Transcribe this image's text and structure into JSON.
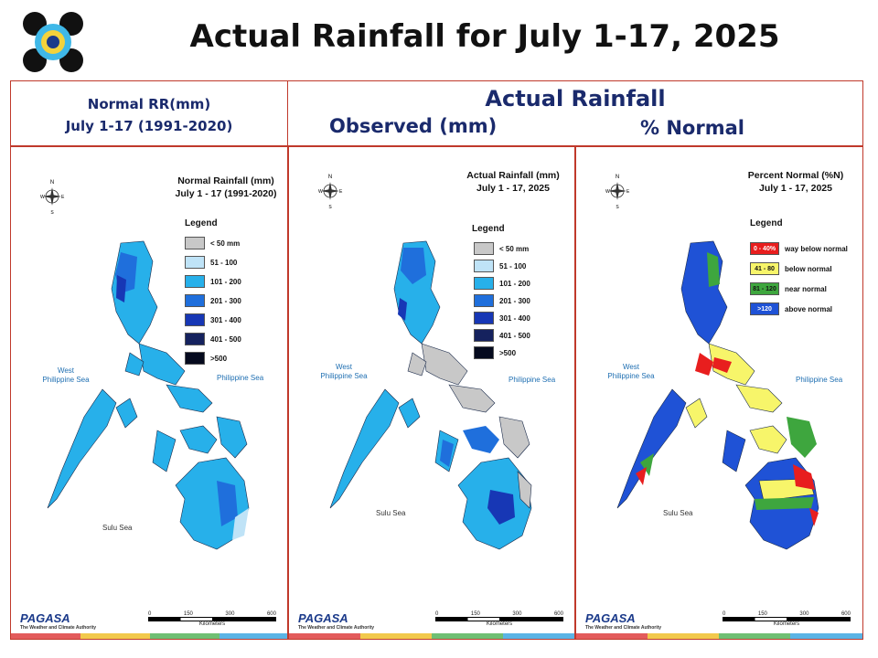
{
  "title": "Actual Rainfall for July 1-17, 2025",
  "headers": {
    "normal": [
      "Normal RR(mm)",
      "July 1-17 (1991-2020)"
    ],
    "actual": "Actual Rainfall",
    "observed": "Observed (mm)",
    "percent": "% Normal"
  },
  "maps": [
    {
      "id": "normal",
      "title": [
        "Normal Rainfall (mm)",
        "July 1 - 17 (1991-2020)"
      ],
      "legend_title": "Legend",
      "legend": [
        {
          "label": "< 50 mm",
          "color": "#c8c8c8"
        },
        {
          "label": "51 - 100",
          "color": "#bfe3f7"
        },
        {
          "label": "101 - 200",
          "color": "#27b0ea"
        },
        {
          "label": "201 - 300",
          "color": "#1f6fdc"
        },
        {
          "label": "301 - 400",
          "color": "#1737b5"
        },
        {
          "label": "401 - 500",
          "color": "#15225e"
        },
        {
          "label": ">500",
          "color": "#050a1e"
        }
      ]
    },
    {
      "id": "observed",
      "title": [
        "Actual Rainfall (mm)",
        "July 1 - 17, 2025"
      ],
      "legend_title": "Legend",
      "legend": [
        {
          "label": "< 50 mm",
          "color": "#c8c8c8"
        },
        {
          "label": "51 - 100",
          "color": "#bfe3f7"
        },
        {
          "label": "101 - 200",
          "color": "#27b0ea"
        },
        {
          "label": "201 - 300",
          "color": "#1f6fdc"
        },
        {
          "label": "301 - 400",
          "color": "#1737b5"
        },
        {
          "label": "401 - 500",
          "color": "#15225e"
        },
        {
          "label": ">500",
          "color": "#050a1e"
        }
      ]
    },
    {
      "id": "percent",
      "title": [
        "Percent Normal (%N)",
        "July 1 - 17, 2025"
      ],
      "legend_title": "Legend",
      "legend": [
        {
          "swatch": "0 - 40%",
          "label": "way below normal",
          "color": "#e81e1e"
        },
        {
          "swatch": "41 - 80",
          "label": "below normal",
          "color": "#f7f56a"
        },
        {
          "swatch": "81 - 120",
          "label": "near normal",
          "color": "#3ea63e"
        },
        {
          "swatch": ">120",
          "label": "above normal",
          "color": "#1f52d6"
        }
      ]
    }
  ],
  "labels": {
    "west_sea": [
      "West",
      "Philippine Sea"
    ],
    "east_sea": "Philippine Sea",
    "sulu_sea": "Sulu Sea",
    "kilometers": "Kilometers",
    "scale": [
      "0",
      "150",
      "300",
      "600"
    ],
    "pagasa": "PAGASA",
    "pagasa_tag": "The Weather and Climate Authority",
    "compass": [
      "N",
      "W",
      "E",
      "S"
    ]
  },
  "map_colors": {
    "normal": {
      "base": "#27b0ea",
      "dark": "#1f6fdc",
      "darker": "#1737b5",
      "light": "#bfe3f7"
    },
    "observed": {
      "base": "#27b0ea",
      "dark": "#1f6fdc",
      "grey": "#c8c8c8",
      "deep": "#1737b5"
    },
    "percent": {
      "blue": "#1f52d6",
      "yellow": "#f7f56a",
      "green": "#3ea63e",
      "red": "#e81e1e"
    }
  }
}
